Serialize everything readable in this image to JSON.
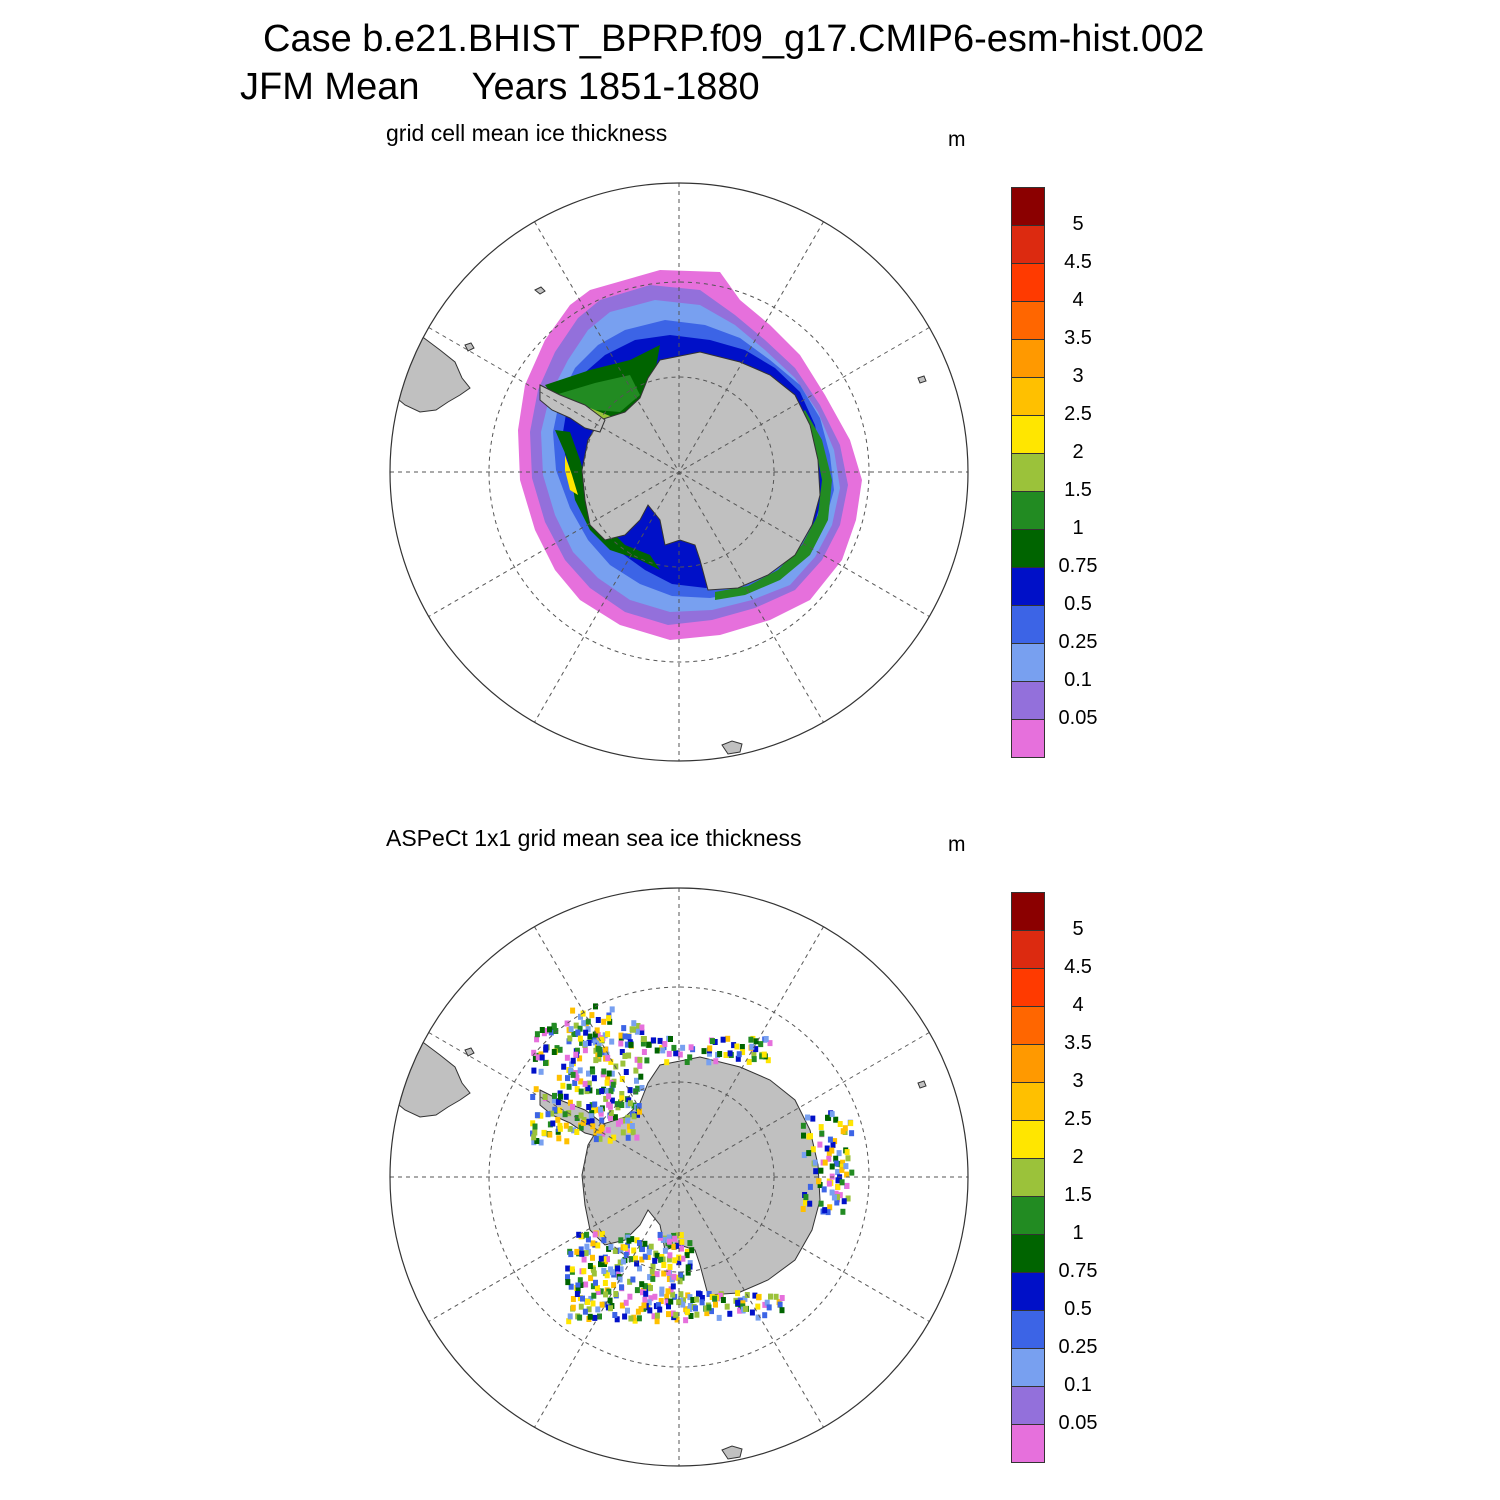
{
  "figure": {
    "title_line1": "Case b.e21.BHIST_BPRP.f09_g17.CMIP6-esm-hist.002",
    "title_line2": "JFM Mean     Years 1851-1880"
  },
  "panels": [
    {
      "id": "model",
      "title": "grid cell mean ice thickness",
      "units": "m"
    },
    {
      "id": "obs",
      "title": "ASPeCt 1x1 grid mean sea ice thickness",
      "units": "m"
    }
  ],
  "colorbar": {
    "labels": [
      "5",
      "4.5",
      "4",
      "3.5",
      "3",
      "2.5",
      "2",
      "1.5",
      "1",
      "0.75",
      "0.5",
      "0.25",
      "0.1",
      "0.05"
    ],
    "colors": [
      "#8b0000",
      "#dc2a10",
      "#ff3a00",
      "#ff6600",
      "#ff9900",
      "#ffc000",
      "#ffe600",
      "#9bc23a",
      "#228b22",
      "#006400",
      "#0010c8",
      "#3c64e6",
      "#78a0f0",
      "#9370db",
      "#e670dc"
    ]
  },
  "map_style": {
    "land_color": "#c0c0c0",
    "grid_line_color": "#555555",
    "projection": "south polar stereographic"
  }
}
